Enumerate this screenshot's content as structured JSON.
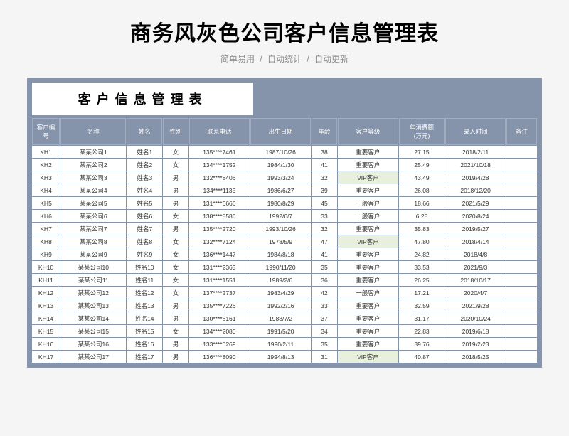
{
  "page_title": "商务风灰色公司客户信息管理表",
  "subtitle": [
    "简单易用",
    "自动统计",
    "自动更新"
  ],
  "table_title": "客户信息管理表",
  "colors": {
    "frame": "#8594ab",
    "header_text": "#ffffff",
    "cell_bg": "#ffffff",
    "vip_bg": "#e8f0dd",
    "page_bg": "#f5f5f5"
  },
  "columns": [
    {
      "key": "id",
      "label": "客户编号",
      "width": "5.5%"
    },
    {
      "key": "company",
      "label": "名称",
      "width": "13%"
    },
    {
      "key": "name",
      "label": "姓名",
      "width": "7%"
    },
    {
      "key": "gender",
      "label": "性别",
      "width": "5%"
    },
    {
      "key": "phone",
      "label": "联系电话",
      "width": "12%"
    },
    {
      "key": "birth",
      "label": "出生日期",
      "width": "12%"
    },
    {
      "key": "age",
      "label": "年龄",
      "width": "5%"
    },
    {
      "key": "level",
      "label": "客户等级",
      "width": "12%"
    },
    {
      "key": "amount",
      "label": "年消费额\n(万元)",
      "width": "9%"
    },
    {
      "key": "date",
      "label": "录入时间",
      "width": "12%"
    },
    {
      "key": "note",
      "label": "备注",
      "width": "6%"
    }
  ],
  "rows": [
    {
      "id": "KH1",
      "company": "某某公司1",
      "name": "姓名1",
      "gender": "女",
      "phone": "135****7461",
      "birth": "1987/10/26",
      "age": "38",
      "level": "重要客户",
      "amount": "27.15",
      "date": "2018/2/11",
      "note": "",
      "vip": false
    },
    {
      "id": "KH2",
      "company": "某某公司2",
      "name": "姓名2",
      "gender": "女",
      "phone": "134****1752",
      "birth": "1984/1/30",
      "age": "41",
      "level": "重要客户",
      "amount": "25.49",
      "date": "2021/10/18",
      "note": "",
      "vip": false
    },
    {
      "id": "KH3",
      "company": "某某公司3",
      "name": "姓名3",
      "gender": "男",
      "phone": "132****8406",
      "birth": "1993/3/24",
      "age": "32",
      "level": "VIP客户",
      "amount": "43.49",
      "date": "2019/4/28",
      "note": "",
      "vip": true
    },
    {
      "id": "KH4",
      "company": "某某公司4",
      "name": "姓名4",
      "gender": "男",
      "phone": "134****1135",
      "birth": "1986/6/27",
      "age": "39",
      "level": "重要客户",
      "amount": "26.08",
      "date": "2018/12/20",
      "note": "",
      "vip": false
    },
    {
      "id": "KH5",
      "company": "某某公司5",
      "name": "姓名5",
      "gender": "男",
      "phone": "131****6666",
      "birth": "1980/8/29",
      "age": "45",
      "level": "一般客户",
      "amount": "18.66",
      "date": "2021/5/29",
      "note": "",
      "vip": false
    },
    {
      "id": "KH6",
      "company": "某某公司6",
      "name": "姓名6",
      "gender": "女",
      "phone": "138****8586",
      "birth": "1992/6/7",
      "age": "33",
      "level": "一般客户",
      "amount": "6.28",
      "date": "2020/8/24",
      "note": "",
      "vip": false
    },
    {
      "id": "KH7",
      "company": "某某公司7",
      "name": "姓名7",
      "gender": "男",
      "phone": "135****2720",
      "birth": "1993/10/26",
      "age": "32",
      "level": "重要客户",
      "amount": "35.83",
      "date": "2019/5/27",
      "note": "",
      "vip": false
    },
    {
      "id": "KH8",
      "company": "某某公司8",
      "name": "姓名8",
      "gender": "女",
      "phone": "132****7124",
      "birth": "1978/5/9",
      "age": "47",
      "level": "VIP客户",
      "amount": "47.80",
      "date": "2018/4/14",
      "note": "",
      "vip": true
    },
    {
      "id": "KH9",
      "company": "某某公司9",
      "name": "姓名9",
      "gender": "女",
      "phone": "136****1447",
      "birth": "1984/8/18",
      "age": "41",
      "level": "重要客户",
      "amount": "24.82",
      "date": "2018/4/8",
      "note": "",
      "vip": false
    },
    {
      "id": "KH10",
      "company": "某某公司10",
      "name": "姓名10",
      "gender": "女",
      "phone": "131****2363",
      "birth": "1990/11/20",
      "age": "35",
      "level": "重要客户",
      "amount": "33.53",
      "date": "2021/9/3",
      "note": "",
      "vip": false
    },
    {
      "id": "KH11",
      "company": "某某公司11",
      "name": "姓名11",
      "gender": "女",
      "phone": "131****1551",
      "birth": "1989/2/6",
      "age": "36",
      "level": "重要客户",
      "amount": "26.25",
      "date": "2018/10/17",
      "note": "",
      "vip": false
    },
    {
      "id": "KH12",
      "company": "某某公司12",
      "name": "姓名12",
      "gender": "女",
      "phone": "137****2737",
      "birth": "1983/4/29",
      "age": "42",
      "level": "一般客户",
      "amount": "17.21",
      "date": "2020/4/7",
      "note": "",
      "vip": false
    },
    {
      "id": "KH13",
      "company": "某某公司13",
      "name": "姓名13",
      "gender": "男",
      "phone": "135****7226",
      "birth": "1992/2/16",
      "age": "33",
      "level": "重要客户",
      "amount": "32.59",
      "date": "2021/9/28",
      "note": "",
      "vip": false
    },
    {
      "id": "KH14",
      "company": "某某公司14",
      "name": "姓名14",
      "gender": "男",
      "phone": "130****8161",
      "birth": "1988/7/2",
      "age": "37",
      "level": "重要客户",
      "amount": "31.17",
      "date": "2020/10/24",
      "note": "",
      "vip": false
    },
    {
      "id": "KH15",
      "company": "某某公司15",
      "name": "姓名15",
      "gender": "女",
      "phone": "134****2080",
      "birth": "1991/5/20",
      "age": "34",
      "level": "重要客户",
      "amount": "22.83",
      "date": "2019/6/18",
      "note": "",
      "vip": false
    },
    {
      "id": "KH16",
      "company": "某某公司16",
      "name": "姓名16",
      "gender": "男",
      "phone": "133****0269",
      "birth": "1990/2/11",
      "age": "35",
      "level": "重要客户",
      "amount": "39.76",
      "date": "2019/2/23",
      "note": "",
      "vip": false
    },
    {
      "id": "KH17",
      "company": "某某公司17",
      "name": "姓名17",
      "gender": "男",
      "phone": "136****8090",
      "birth": "1994/8/13",
      "age": "31",
      "level": "VIP客户",
      "amount": "40.87",
      "date": "2018/5/25",
      "note": "",
      "vip": true
    }
  ]
}
